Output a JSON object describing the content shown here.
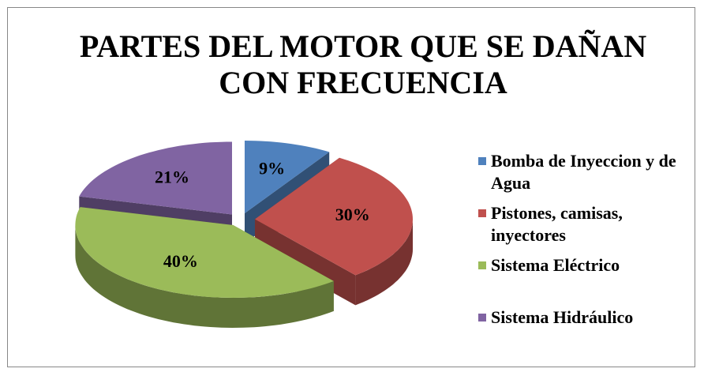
{
  "chart_data": {
    "type": "pie3d",
    "title": "PARTES DEL MOTOR QUE SE DAÑAN CON FRECUENCIA",
    "categories": [
      "Bomba de Inyeccion y de Agua",
      "Pistones, camisas, inyectores",
      "Sistema Eléctrico",
      "Sistema Hidráulico"
    ],
    "values": [
      9,
      30,
      40,
      21
    ],
    "value_labels": [
      "9%",
      "30%",
      "40%",
      "21%"
    ],
    "colors": [
      "#4f81bd",
      "#c0504d",
      "#9bbb59",
      "#8064a2"
    ],
    "legend": "right"
  }
}
